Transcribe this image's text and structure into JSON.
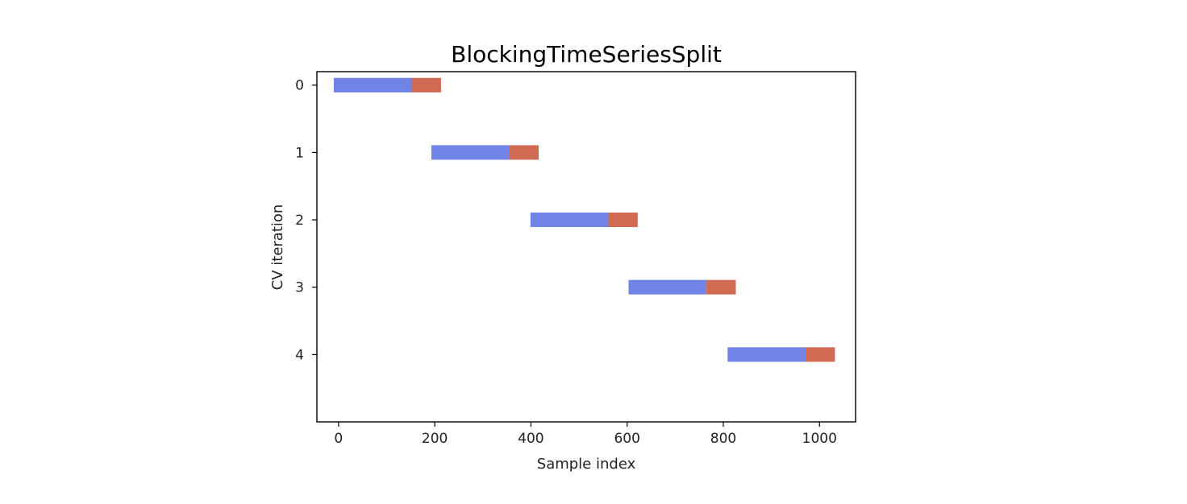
{
  "chart_data": {
    "type": "bar",
    "orientation": "horizontal",
    "stacked": true,
    "title": "BlockingTimeSeriesSplit",
    "xlabel": "Sample index",
    "ylabel": "CV iteration",
    "xlim": [
      -45,
      1075
    ],
    "ylim": [
      5.0,
      -0.2
    ],
    "xticks": [
      0,
      200,
      400,
      600,
      800,
      1000
    ],
    "xtick_labels": [
      "0",
      "200",
      "400",
      "600",
      "800",
      "1000"
    ],
    "yticks": [
      0,
      1,
      2,
      3,
      4
    ],
    "ytick_labels": [
      "0",
      "1",
      "2",
      "3",
      "4"
    ],
    "grid": false,
    "colors": {
      "train": "#6f84e6",
      "test": "#d06a52"
    },
    "segments": [
      {
        "iteration": 0,
        "train": [
          -10,
          152
        ],
        "test": [
          152,
          213
        ]
      },
      {
        "iteration": 1,
        "train": [
          193,
          355
        ],
        "test": [
          355,
          416
        ]
      },
      {
        "iteration": 2,
        "train": [
          399,
          561
        ],
        "test": [
          561,
          622
        ]
      },
      {
        "iteration": 3,
        "train": [
          603,
          765
        ],
        "test": [
          765,
          826
        ]
      },
      {
        "iteration": 4,
        "train": [
          809,
          971
        ],
        "test": [
          971,
          1032
        ]
      }
    ]
  }
}
